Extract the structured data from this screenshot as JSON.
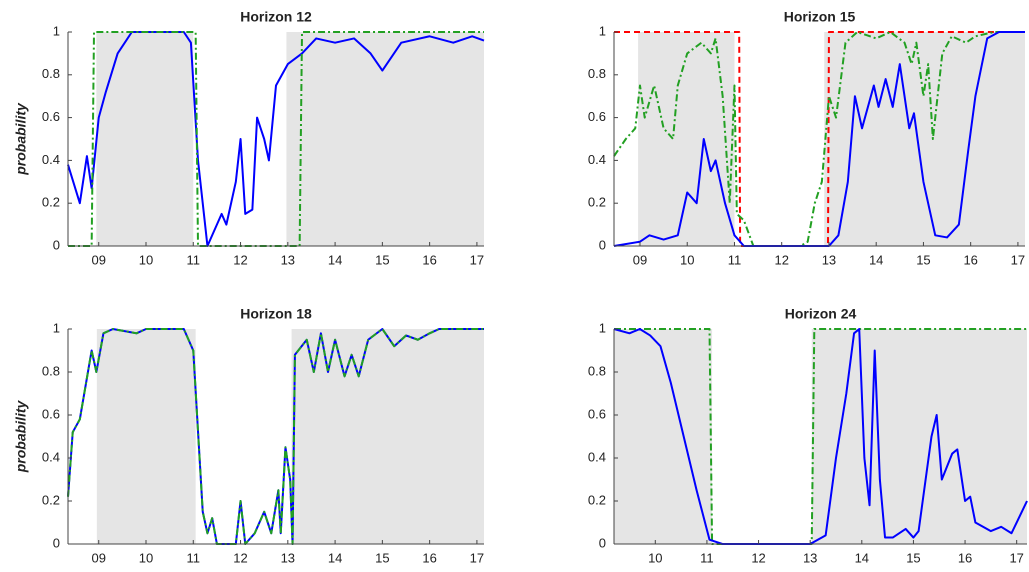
{
  "chart_data": [
    {
      "type": "line",
      "title": "Horizon 12",
      "ylabel": "probability",
      "xlim": [
        2008.35,
        2017.15
      ],
      "ylim": [
        0,
        1
      ],
      "xticks": [
        {
          "value": 2009,
          "label": "09"
        },
        {
          "value": 2010,
          "label": "10"
        },
        {
          "value": 2011,
          "label": "11"
        },
        {
          "value": 2012,
          "label": "12"
        },
        {
          "value": 2013,
          "label": "13"
        },
        {
          "value": 2014,
          "label": "14"
        },
        {
          "value": 2015,
          "label": "15"
        },
        {
          "value": 2016,
          "label": "16"
        },
        {
          "value": 2017,
          "label": "17"
        }
      ],
      "yticks": [
        0,
        0.2,
        0.4,
        0.6,
        0.8,
        1
      ],
      "shaded": [
        [
          2008.95,
          2011.0
        ],
        [
          2012.97,
          2017.15
        ]
      ],
      "shade_color": "#e5e5e5",
      "series": [
        {
          "color": "#0000ff",
          "style": "solid",
          "x": [
            2008.35,
            2008.6,
            2008.75,
            2008.85,
            2009.0,
            2009.15,
            2009.4,
            2009.7,
            2010.8,
            2010.95,
            2011.1,
            2011.3,
            2011.6,
            2011.7,
            2011.9,
            2012.0,
            2012.1,
            2012.25,
            2012.35,
            2012.5,
            2012.6,
            2012.75,
            2013.0,
            2013.3,
            2013.6,
            2014.0,
            2014.4,
            2014.75,
            2015.0,
            2015.4,
            2016.0,
            2016.5,
            2016.9,
            2017.15
          ],
          "values": [
            0.38,
            0.2,
            0.42,
            0.27,
            0.6,
            0.72,
            0.9,
            1,
            1,
            0.95,
            0.4,
            0,
            0.15,
            0.1,
            0.3,
            0.5,
            0.15,
            0.17,
            0.6,
            0.5,
            0.4,
            0.75,
            0.85,
            0.9,
            0.97,
            0.95,
            0.97,
            0.9,
            0.82,
            0.95,
            0.98,
            0.95,
            0.98,
            0.96
          ]
        },
        {
          "color": "#22a022",
          "style": "dashdot",
          "x": [
            2008.35,
            2008.85,
            2008.9,
            2011.05,
            2011.1,
            2013.25,
            2013.3,
            2017.15
          ],
          "values": [
            0,
            0,
            1,
            1,
            0,
            0,
            1,
            1
          ]
        }
      ]
    },
    {
      "type": "line",
      "title": "Horizon 15",
      "xlim": [
        2008.45,
        2017.15
      ],
      "ylim": [
        0,
        1
      ],
      "xticks": [
        {
          "value": 2009,
          "label": "09"
        },
        {
          "value": 2010,
          "label": "10"
        },
        {
          "value": 2011,
          "label": "11"
        },
        {
          "value": 2012,
          "label": "12"
        },
        {
          "value": 2013,
          "label": "13"
        },
        {
          "value": 2014,
          "label": "14"
        },
        {
          "value": 2015,
          "label": "15"
        },
        {
          "value": 2016,
          "label": "16"
        },
        {
          "value": 2017,
          "label": "17"
        }
      ],
      "yticks": [
        0,
        0.2,
        0.4,
        0.6,
        0.8,
        1
      ],
      "shaded": [
        [
          2008.96,
          2011.0
        ],
        [
          2012.9,
          2017.15
        ]
      ],
      "shade_color": "#e5e5e5",
      "series": [
        {
          "color": "#ff0000",
          "style": "dashed",
          "x": [
            2008.45,
            2011.1,
            2011.12,
            2012.98,
            2013.0,
            2017.15
          ],
          "values": [
            1,
            1,
            0,
            0,
            1,
            1
          ]
        },
        {
          "color": "#22a022",
          "style": "dashdot",
          "x": [
            2008.45,
            2008.7,
            2008.9,
            2009.0,
            2009.1,
            2009.3,
            2009.5,
            2009.7,
            2009.8,
            2010.0,
            2010.3,
            2010.5,
            2010.6,
            2010.75,
            2010.9,
            2011.0,
            2011.05,
            2011.2,
            2011.4,
            2012.4,
            2012.55,
            2012.7,
            2012.85,
            2013.0,
            2013.15,
            2013.35,
            2013.6,
            2014.0,
            2014.3,
            2014.6,
            2014.75,
            2014.85,
            2015.0,
            2015.1,
            2015.2,
            2015.4,
            2015.6,
            2015.9,
            2016.1,
            2016.5,
            2017.15
          ],
          "values": [
            0.42,
            0.5,
            0.55,
            0.75,
            0.6,
            0.75,
            0.55,
            0.5,
            0.75,
            0.9,
            0.95,
            0.9,
            0.97,
            0.7,
            0.2,
            0.75,
            0.15,
            0.12,
            0,
            0,
            0.02,
            0.2,
            0.3,
            0.7,
            0.6,
            0.95,
            1,
            0.97,
            1,
            0.95,
            0.85,
            0.95,
            0.7,
            0.85,
            0.5,
            0.9,
            0.98,
            0.95,
            0.98,
            1,
            1
          ]
        },
        {
          "color": "#0000ff",
          "style": "solid",
          "x": [
            2008.45,
            2009.0,
            2009.2,
            2009.5,
            2009.8,
            2010.0,
            2010.2,
            2010.35,
            2010.5,
            2010.6,
            2010.8,
            2011.0,
            2011.2,
            2013.0,
            2013.2,
            2013.4,
            2013.55,
            2013.7,
            2013.95,
            2014.05,
            2014.2,
            2014.35,
            2014.5,
            2014.7,
            2014.8,
            2015.0,
            2015.25,
            2015.5,
            2015.75,
            2015.95,
            2016.1,
            2016.35,
            2016.6,
            2017.15
          ],
          "values": [
            0,
            0.02,
            0.05,
            0.03,
            0.05,
            0.25,
            0.2,
            0.5,
            0.35,
            0.4,
            0.2,
            0.05,
            0,
            0,
            0.05,
            0.3,
            0.7,
            0.55,
            0.75,
            0.65,
            0.78,
            0.65,
            0.85,
            0.55,
            0.62,
            0.3,
            0.05,
            0.04,
            0.1,
            0.45,
            0.7,
            0.97,
            1,
            1
          ]
        }
      ]
    },
    {
      "type": "line",
      "title": "Horizon 18",
      "ylabel": "probability",
      "xlim": [
        2008.35,
        2017.15
      ],
      "ylim": [
        0,
        1
      ],
      "xticks": [
        {
          "value": 2009,
          "label": "09"
        },
        {
          "value": 2010,
          "label": "10"
        },
        {
          "value": 2011,
          "label": "11"
        },
        {
          "value": 2012,
          "label": "12"
        },
        {
          "value": 2013,
          "label": "13"
        },
        {
          "value": 2014,
          "label": "14"
        },
        {
          "value": 2015,
          "label": "15"
        },
        {
          "value": 2016,
          "label": "16"
        },
        {
          "value": 2017,
          "label": "17"
        }
      ],
      "yticks": [
        0,
        0.2,
        0.4,
        0.6,
        0.8,
        1
      ],
      "shaded": [
        [
          2008.96,
          2011.05
        ],
        [
          2013.08,
          2017.15
        ]
      ],
      "shade_color": "#e5e5e5",
      "series": [
        {
          "color": "#0000ff",
          "style": "solid",
          "x": [
            2008.35,
            2008.45,
            2008.6,
            2008.85,
            2008.95,
            2009.1,
            2009.3,
            2009.8,
            2010.0,
            2010.8,
            2011.0,
            2011.2,
            2011.3,
            2011.4,
            2011.5,
            2011.9,
            2012.0,
            2012.1,
            2012.3,
            2012.5,
            2012.65,
            2012.8,
            2012.85,
            2012.95,
            2013.05,
            2013.1,
            2013.15,
            2013.4,
            2013.55,
            2013.7,
            2013.85,
            2014.0,
            2014.2,
            2014.35,
            2014.5,
            2014.7,
            2015.0,
            2015.25,
            2015.5,
            2015.75,
            2016.0,
            2016.2,
            2017.15
          ],
          "values": [
            0.22,
            0.52,
            0.58,
            0.9,
            0.8,
            0.98,
            1,
            0.98,
            1,
            1,
            0.9,
            0.15,
            0.05,
            0.12,
            0,
            0,
            0.2,
            0,
            0.05,
            0.15,
            0.05,
            0.25,
            0.05,
            0.45,
            0.3,
            0,
            0.88,
            0.95,
            0.8,
            0.98,
            0.8,
            0.95,
            0.78,
            0.88,
            0.78,
            0.95,
            1,
            0.92,
            0.97,
            0.95,
            0.98,
            1,
            1
          ]
        },
        {
          "color": "#22a022",
          "style": "dashdot",
          "x": [
            2008.35,
            2008.45,
            2008.6,
            2008.85,
            2008.95,
            2009.1,
            2009.3,
            2009.8,
            2010.0,
            2010.8,
            2011.0,
            2011.2,
            2011.3,
            2011.4,
            2011.5,
            2011.9,
            2012.0,
            2012.1,
            2012.3,
            2012.5,
            2012.65,
            2012.8,
            2012.85,
            2012.95,
            2013.05,
            2013.1,
            2013.15,
            2013.4,
            2013.55,
            2013.7,
            2013.85,
            2014.0,
            2014.2,
            2014.35,
            2014.5,
            2014.7,
            2015.0,
            2015.25,
            2015.5,
            2015.75,
            2016.0,
            2016.2,
            2017.15
          ],
          "values": [
            0.22,
            0.52,
            0.58,
            0.9,
            0.8,
            0.98,
            1,
            0.98,
            1,
            1,
            0.9,
            0.15,
            0.05,
            0.12,
            0,
            0,
            0.2,
            0,
            0.05,
            0.15,
            0.05,
            0.25,
            0.05,
            0.45,
            0.3,
            0,
            0.88,
            0.95,
            0.8,
            0.98,
            0.8,
            0.95,
            0.78,
            0.88,
            0.78,
            0.95,
            1,
            0.92,
            0.97,
            0.95,
            0.98,
            1,
            1
          ]
        }
      ]
    },
    {
      "type": "line",
      "title": "Horizon 24",
      "xlim": [
        2009.2,
        2017.2
      ],
      "ylim": [
        0,
        1
      ],
      "xticks": [
        {
          "value": 2010,
          "label": "10"
        },
        {
          "value": 2011,
          "label": "11"
        },
        {
          "value": 2012,
          "label": "12"
        },
        {
          "value": 2013,
          "label": "13"
        },
        {
          "value": 2014,
          "label": "14"
        },
        {
          "value": 2015,
          "label": "15"
        },
        {
          "value": 2016,
          "label": "16"
        },
        {
          "value": 2017,
          "label": "17"
        }
      ],
      "yticks": [
        0,
        0.2,
        0.4,
        0.6,
        0.8,
        1
      ],
      "shaded": [
        [
          2009.2,
          2011.1
        ],
        [
          2013.03,
          2017.2
        ]
      ],
      "shade_color": "#e5e5e5",
      "series": [
        {
          "color": "#22a022",
          "style": "dashdot",
          "x": [
            2009.2,
            2011.05,
            2011.1,
            2013.03,
            2013.08,
            2017.2
          ],
          "values": [
            1,
            1,
            0,
            0,
            1,
            1
          ]
        },
        {
          "color": "#0000ff",
          "style": "solid",
          "x": [
            2009.2,
            2009.5,
            2009.7,
            2009.9,
            2010.1,
            2010.3,
            2010.6,
            2010.8,
            2011.05,
            2011.3,
            2013.0,
            2013.3,
            2013.5,
            2013.7,
            2013.85,
            2013.95,
            2014.05,
            2014.15,
            2014.25,
            2014.35,
            2014.45,
            2014.6,
            2014.85,
            2015.0,
            2015.1,
            2015.35,
            2015.45,
            2015.55,
            2015.75,
            2015.85,
            2016.0,
            2016.1,
            2016.2,
            2016.5,
            2016.7,
            2016.9,
            2017.2
          ],
          "values": [
            1,
            0.98,
            1,
            0.97,
            0.92,
            0.75,
            0.45,
            0.25,
            0.02,
            0,
            0,
            0.04,
            0.4,
            0.7,
            0.98,
            1,
            0.4,
            0.18,
            0.9,
            0.3,
            0.03,
            0.03,
            0.07,
            0.03,
            0.06,
            0.5,
            0.6,
            0.3,
            0.42,
            0.44,
            0.2,
            0.22,
            0.1,
            0.06,
            0.08,
            0.05,
            0.2
          ]
        }
      ]
    }
  ]
}
